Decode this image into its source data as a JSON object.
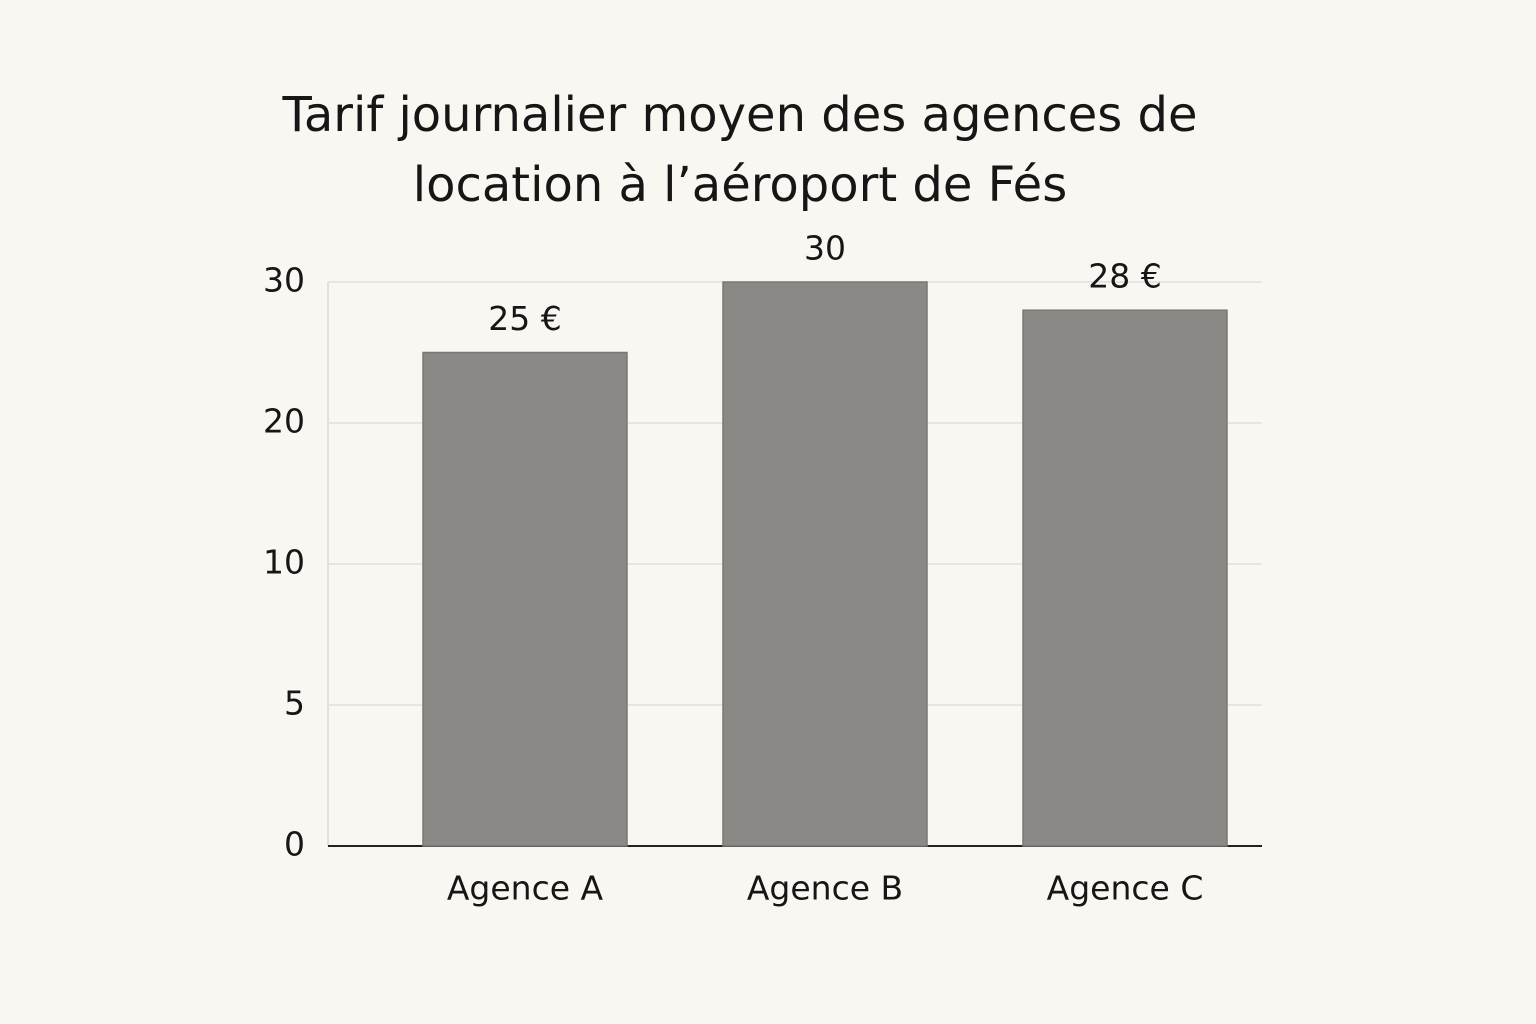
{
  "chart_data": {
    "type": "bar",
    "title": "Tarif journalier moyen des agences de location à l’aéroport de Fés",
    "categories": [
      "Agence A",
      "Agence B",
      "Agence C"
    ],
    "values": [
      25,
      30,
      28
    ],
    "value_labels": [
      "25 €",
      "30",
      "28 €"
    ],
    "color": "#8b8986",
    "ylim": [
      0,
      30
    ],
    "yticks": [
      0,
      5,
      10,
      20,
      30
    ],
    "grid": true
  }
}
